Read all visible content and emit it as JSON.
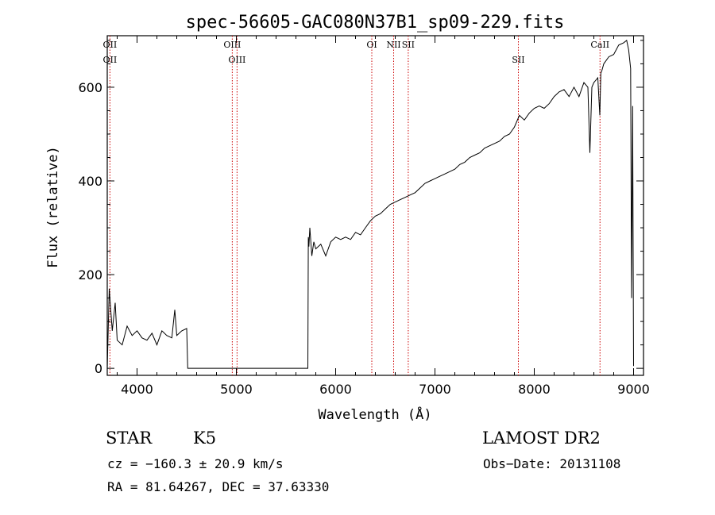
{
  "chart_data": {
    "type": "line",
    "title": "spec-56605-GAC080N37B1_sp09-229.fits",
    "xlabel": "Wavelength (Å)",
    "ylabel": "Flux (relative)",
    "xlim": [
      3700,
      9100
    ],
    "ylim": [
      -15,
      710
    ],
    "xticks": [
      4000,
      5000,
      6000,
      7000,
      8000,
      9000
    ],
    "yticks": [
      0,
      200,
      400,
      600
    ],
    "grid": false,
    "line_color": "#000000",
    "marker_color": "#cc0000",
    "series": [
      {
        "x": [
          3700,
          3720,
          3750,
          3780,
          3800,
          3850,
          3900,
          3950,
          4000,
          4050,
          4100,
          4150,
          4200,
          4250,
          4300,
          4350,
          4380,
          4400,
          4450,
          4500,
          4510,
          5000,
          5500,
          5720,
          5725,
          5730,
          5740,
          5760,
          5780,
          5800,
          5850,
          5900,
          5950,
          6000,
          6050,
          6100,
          6150,
          6200,
          6250,
          6300,
          6350,
          6400,
          6450,
          6500,
          6550,
          6600,
          6650,
          6700,
          6750,
          6800,
          6850,
          6900,
          6950,
          7000,
          7050,
          7100,
          7150,
          7200,
          7250,
          7300,
          7350,
          7400,
          7450,
          7500,
          7550,
          7600,
          7650,
          7700,
          7750,
          7800,
          7850,
          7900,
          7950,
          8000,
          8050,
          8100,
          8150,
          8200,
          8250,
          8300,
          8350,
          8400,
          8450,
          8500,
          8540,
          8560,
          8580,
          8600,
          8620,
          8640,
          8660,
          8670,
          8680,
          8700,
          8750,
          8800,
          8850,
          8900,
          8930,
          8950,
          8970,
          8980,
          8990,
          9000
        ],
        "y": [
          0,
          170,
          80,
          140,
          60,
          50,
          90,
          70,
          80,
          65,
          60,
          75,
          50,
          80,
          70,
          65,
          125,
          70,
          80,
          85,
          0,
          0,
          0,
          0,
          280,
          260,
          300,
          240,
          270,
          255,
          265,
          240,
          270,
          280,
          275,
          280,
          275,
          290,
          285,
          300,
          315,
          325,
          330,
          340,
          350,
          355,
          360,
          365,
          370,
          375,
          385,
          395,
          400,
          405,
          410,
          415,
          420,
          425,
          435,
          440,
          450,
          455,
          460,
          470,
          475,
          480,
          485,
          495,
          500,
          515,
          540,
          530,
          545,
          555,
          560,
          555,
          565,
          580,
          590,
          595,
          580,
          600,
          580,
          610,
          600,
          460,
          600,
          610,
          615,
          620,
          540,
          630,
          635,
          650,
          665,
          670,
          690,
          695,
          700,
          680,
          640,
          150,
          560,
          5
        ]
      }
    ],
    "lines": [
      {
        "x": 3727,
        "upper": "OII",
        "lower": "OII"
      },
      {
        "x": 4959,
        "upper": "OIII",
        "lower": ""
      },
      {
        "x": 5007,
        "upper": "",
        "lower": "OIII"
      },
      {
        "x": 6364,
        "upper": "OI",
        "lower": ""
      },
      {
        "x": 6584,
        "upper": "NII",
        "lower": ""
      },
      {
        "x": 6731,
        "upper": "SII",
        "lower": ""
      },
      {
        "x": 7840,
        "upper": "",
        "lower": "SII"
      },
      {
        "x": 8662,
        "upper": "CaII",
        "lower": ""
      }
    ]
  },
  "footer": {
    "object_class": "STAR",
    "subclass": "K5",
    "survey": "LAMOST DR2",
    "velocity": "cz = −160.3 ± 20.9 km/s",
    "obs_date": "Obs−Date: 20131108",
    "coords": "RA =  81.64267, DEC =  37.63330"
  }
}
